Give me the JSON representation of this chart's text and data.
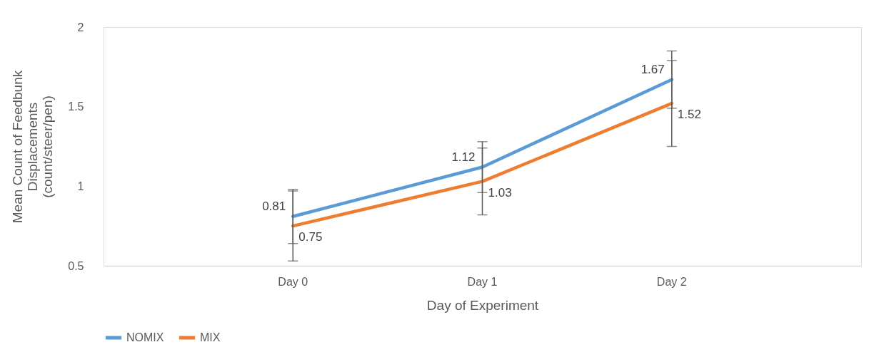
{
  "chart_data": {
    "type": "line",
    "xlabel": "Day of Experiment",
    "ylabel": "Mean Count of Feedbunk\nDisplacements\n(count/steer/pen)",
    "categories": [
      "Day 0",
      "Day 1",
      "Day 2"
    ],
    "series": [
      {
        "name": "NOMIX",
        "color": "#5b9bd5",
        "values": [
          0.81,
          1.12,
          1.67
        ],
        "errors": [
          0.17,
          0.16,
          0.18
        ]
      },
      {
        "name": "MIX",
        "color": "#ed7d31",
        "values": [
          0.75,
          1.03,
          1.52
        ],
        "errors": [
          0.22,
          0.21,
          0.27
        ]
      }
    ],
    "ylim": [
      0.5,
      2
    ],
    "yticks": [
      0.5,
      1,
      1.5,
      2
    ],
    "grid": false,
    "legend": "bottom",
    "data_labels": true,
    "marker": "none",
    "line_style": "solid"
  }
}
